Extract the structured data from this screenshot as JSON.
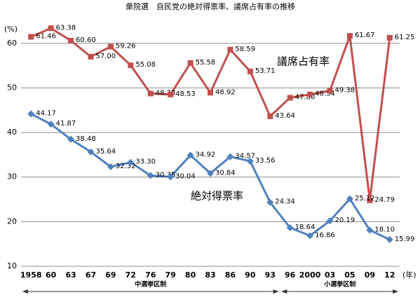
{
  "chart_data": {
    "type": "line",
    "title": "衆院選　自民党の絶対得票率、議席占有率の推移",
    "y_unit_label": "(%)",
    "x_unit_label": "(年)",
    "categories": [
      "1958",
      "60",
      "63",
      "67",
      "69",
      "72",
      "76",
      "79",
      "80",
      "83",
      "86",
      "90",
      "93",
      "96",
      "2000",
      "03",
      "05",
      "09",
      "12"
    ],
    "series": [
      {
        "name": "議席占有率",
        "color": "#c0504d",
        "marker": "square",
        "values": [
          61.46,
          63.38,
          60.6,
          57.0,
          59.26,
          55.08,
          48.73,
          48.53,
          55.58,
          48.92,
          58.59,
          53.71,
          43.64,
          47.8,
          48.54,
          49.38,
          61.67,
          24.79,
          61.25
        ],
        "value_labels": [
          "61.46",
          "63.38",
          "60.60",
          "57.00",
          "59.26",
          "55.08",
          "48.73",
          "48.53",
          "55.58",
          "48.92",
          "58.59",
          "53.71",
          "43.64",
          "47.80",
          "48.54",
          "49.38",
          "61.67",
          "24.79",
          "61.25"
        ]
      },
      {
        "name": "絶対得票率",
        "color": "#4f81bd",
        "marker": "diamond",
        "values": [
          44.17,
          41.87,
          38.48,
          35.64,
          32.32,
          33.3,
          30.35,
          30.04,
          34.92,
          30.84,
          34.57,
          33.56,
          24.34,
          18.64,
          16.86,
          20.19,
          25.12,
          18.1,
          15.99
        ],
        "value_labels": [
          "44.17",
          "41.87",
          "38.48",
          "35.64",
          "32.32",
          "33.30",
          "30.35",
          "30.04",
          "34.92",
          "30.84",
          "34.57",
          "33.56",
          "24.34",
          "18.64",
          "16.86",
          "20.19",
          "25.12",
          "18.10",
          "15.99"
        ]
      }
    ],
    "ylim": [
      10,
      65
    ],
    "yticks": [
      10,
      20,
      30,
      40,
      50,
      60
    ],
    "grid": true,
    "periods": [
      {
        "label": "中選挙区制",
        "from": 0,
        "to": 12
      },
      {
        "label": "小選挙区制",
        "from": 13,
        "to": 18
      }
    ]
  }
}
